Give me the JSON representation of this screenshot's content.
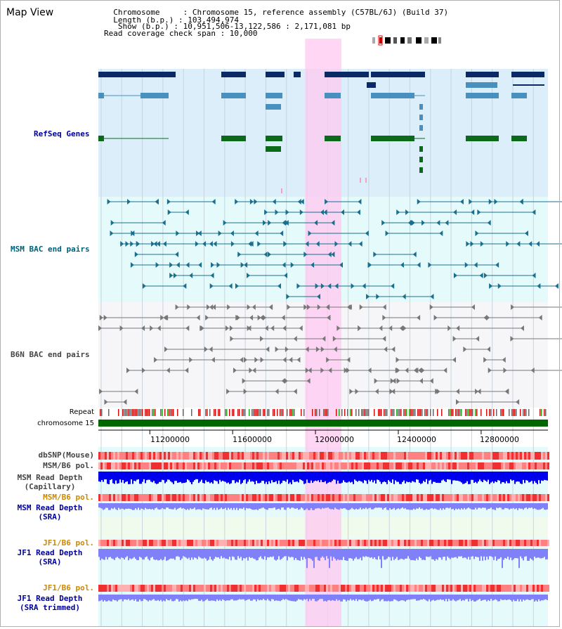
{
  "header": {
    "title": "Map View",
    "info_lines": [
      "  Chromosome     : Chromosome 15, reference assembly (C57BL/6J) (Build 37)",
      "  Length (b.p.) : 103,494,974",
      "   Show (b.p.) : 10,951,506-13,122,586 : 2,171,081 bp",
      "Read coverage check span : 10,000"
    ]
  },
  "tracks": {
    "refseq": "RefSeq Genes",
    "msm_bac": "MSM BAC end pairs",
    "b6n_bac": "B6N BAC end pairs",
    "repeat": "Repeat",
    "chromosome": "chromosome 15",
    "dbsnp": "dbSNP(Mouse)",
    "msm_b6_pol": "MSM/B6 pol.",
    "msm_depth_cap": "MSM Read Depth\n(Capillary)",
    "msm_b6_pol2": "MSM/B6 pol.",
    "msm_depth_sra": "MSM Read Depth\n(SRA)",
    "jf1_b6_pol": "JF1/B6 pol.",
    "jf1_depth_sra": "JF1 Read Depth\n(SRA)",
    "jf1_b6_pol2": "JF1/B6 pol.",
    "jf1_depth_trim": "JF1 Read Depth\n(SRA trimmed)"
  },
  "axis": {
    "ticks": [
      "11200000",
      "11600000",
      "12000000",
      "12400000",
      "12800000"
    ],
    "tick_values": [
      11200000,
      11600000,
      12000000,
      12400000,
      12800000
    ],
    "range": [
      10951506,
      13122586
    ]
  },
  "highlight": {
    "start": 11950000,
    "end": 12125000
  },
  "colors": {
    "refseq_bg": "#dbeef9",
    "msm_bg": "#e5fbfb",
    "b6n_bg": "#f6f6f9",
    "lower_bg": "#e5fbfb",
    "lower_bg2": "#f0fbee",
    "highlight": "#ffc8f0",
    "refseq_dark": "#0a2a66",
    "refseq_mid": "#4a90bf",
    "refseq_green": "#0a6a1a",
    "msm_pair": "#1a6f8f",
    "b6n_pair": "#777777",
    "chromosome_bar": "#006600",
    "depth_dark": "#0000ee",
    "depth_light": "#8080f8",
    "pol_red": "#ee2020",
    "label_navy": "#000099",
    "label_teal": "#00607a",
    "label_gray": "#444444",
    "label_orange": "#cc8800"
  }
}
